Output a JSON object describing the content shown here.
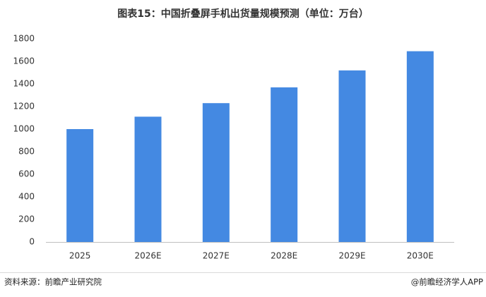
{
  "chart_data": {
    "type": "bar",
    "title": "图表15：中国折叠屏手机出货量规模预测（单位：万台）",
    "categories": [
      "2025",
      "2026E",
      "2027E",
      "2028E",
      "2029E",
      "2030E"
    ],
    "values": [
      1000,
      1110,
      1230,
      1370,
      1520,
      1690
    ],
    "color": "#4489e2",
    "ylim": [
      0,
      1800
    ],
    "yticks": [
      0,
      200,
      400,
      600,
      800,
      1000,
      1200,
      1400,
      1600,
      1800
    ],
    "grid": false,
    "source": "资料来源：前瞻产业研究院",
    "credit": "@前瞻经济学人APP"
  }
}
